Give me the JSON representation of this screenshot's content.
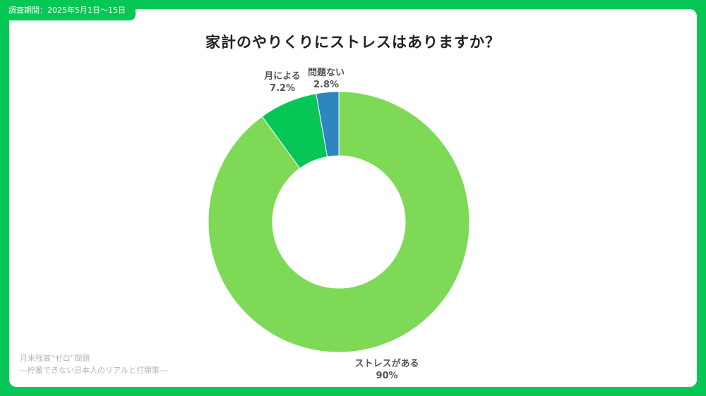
{
  "header": {
    "period": "調査期間：2025年5月1日〜15日"
  },
  "colors": {
    "frame": "#06c755",
    "slice_stress": "#7ed957",
    "slice_monthly": "#06c755",
    "slice_none": "#2e86c1"
  },
  "source": {
    "line1": "月末残高“ゼロ”問題",
    "line2": "―貯蓄できない日本人のリアルと打開策―"
  },
  "chart_data": {
    "type": "pie",
    "donut": true,
    "title": "家計のやりくりにストレスはありますか？",
    "slices": [
      {
        "label": "問題ない",
        "value": 2.8,
        "value_label": "2.8%",
        "color": "#2e86c1"
      },
      {
        "label": "月による",
        "value": 7.2,
        "value_label": "7.2%",
        "color": "#06c755"
      },
      {
        "label": "ストレスがある",
        "value": 90,
        "value_label": "90%",
        "color": "#7ed957"
      }
    ]
  }
}
